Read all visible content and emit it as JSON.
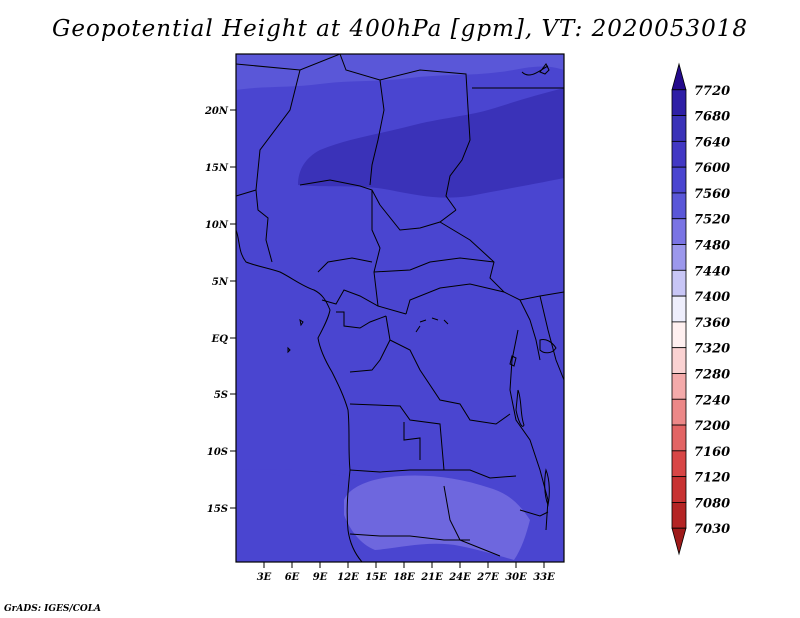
{
  "title": "Geopotential Height at 400hPa [gpm], VT: 2020053018",
  "credit": "GrADS: IGES/COLA",
  "map": {
    "lon_labels": [
      "3E",
      "6E",
      "9E",
      "12E",
      "15E",
      "18E",
      "21E",
      "24E",
      "27E",
      "30E",
      "33E"
    ],
    "lat_labels": [
      "20N",
      "15N",
      "10N",
      "5N",
      "EQ",
      "5S",
      "10S",
      "15S"
    ]
  },
  "colorbar": {
    "levels": [
      "7720",
      "7680",
      "7640",
      "7600",
      "7560",
      "7520",
      "7480",
      "7440",
      "7400",
      "7360",
      "7320",
      "7280",
      "7240",
      "7200",
      "7160",
      "7120",
      "7080",
      "7030"
    ],
    "colors": [
      "#240a8c",
      "#2e1fa6",
      "#3a32b8",
      "#4238c4",
      "#4a45d0",
      "#5a57d8",
      "#7a74e4",
      "#9c98ec",
      "#c8c6f6",
      "#eeeefc",
      "#fff0f0",
      "#fad2d2",
      "#f4aaaa",
      "#ec8888",
      "#e26464",
      "#d84646",
      "#c83232",
      "#b42424",
      "#9e1a1a"
    ]
  }
}
